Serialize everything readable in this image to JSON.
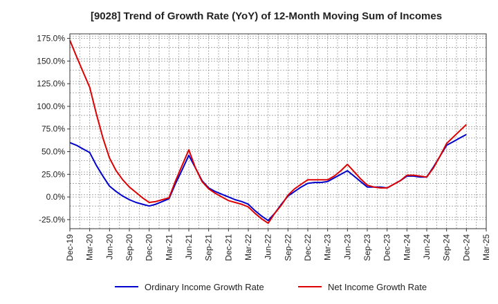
{
  "chart_data": {
    "type": "line",
    "title": "[9028]  Trend of Growth Rate (YoY) of 12-Month Moving Sum of Incomes",
    "xlabel": "",
    "ylabel": "",
    "x_ticks": [
      "Dec-19",
      "Mar-20",
      "Jun-20",
      "Sep-20",
      "Dec-20",
      "Mar-21",
      "Jun-21",
      "Sep-21",
      "Dec-21",
      "Mar-22",
      "Jun-22",
      "Sep-22",
      "Dec-22",
      "Mar-23",
      "Jun-23",
      "Sep-23",
      "Dec-23",
      "Mar-24",
      "Jun-24",
      "Sep-24",
      "Dec-24",
      "Mar-25"
    ],
    "y_ticks": [
      "175.0%",
      "150.0%",
      "125.0%",
      "100.0%",
      "75.0%",
      "50.0%",
      "25.0%",
      "0.0%",
      "-25.0%"
    ],
    "y_tick_values": [
      175,
      150,
      125,
      100,
      75,
      50,
      25,
      0,
      -25
    ],
    "ylim": [
      -35,
      180
    ],
    "grid": true,
    "legend_position": "bottom",
    "x": [
      "Dec-19",
      "Jan-20",
      "Feb-20",
      "Mar-20",
      "Apr-20",
      "May-20",
      "Jun-20",
      "Jul-20",
      "Aug-20",
      "Sep-20",
      "Oct-20",
      "Nov-20",
      "Dec-20",
      "Jan-21",
      "Feb-21",
      "Mar-21",
      "Apr-21",
      "May-21",
      "Jun-21",
      "Jul-21",
      "Aug-21",
      "Sep-21",
      "Oct-21",
      "Nov-21",
      "Dec-21",
      "Jan-22",
      "Feb-22",
      "Mar-22",
      "Apr-22",
      "May-22",
      "Jun-22",
      "Jul-22",
      "Aug-22",
      "Sep-22",
      "Oct-22",
      "Nov-22",
      "Dec-22",
      "Jan-23",
      "Feb-23",
      "Mar-23",
      "Apr-23",
      "May-23",
      "Jun-23",
      "Jul-23",
      "Aug-23",
      "Sep-23",
      "Oct-23",
      "Nov-23",
      "Dec-23",
      "Jan-24",
      "Feb-24",
      "Mar-24",
      "Apr-24",
      "May-24",
      "Jun-24",
      "Jul-24",
      "Aug-24",
      "Sep-24",
      "Oct-24",
      "Nov-24",
      "Dec-24"
    ],
    "series": [
      {
        "name": "Ordinary Income Growth Rate",
        "color": "#0000cc",
        "values": [
          60,
          57,
          53,
          49,
          35,
          23,
          12,
          6,
          1,
          -3,
          -6,
          -8,
          -10,
          -8,
          -5,
          -2,
          15,
          30,
          46,
          32,
          18,
          10,
          6,
          3,
          0,
          -3,
          -5,
          -8,
          -15,
          -21,
          -26,
          -18,
          -8,
          1,
          6,
          11,
          15,
          16,
          16,
          17,
          21,
          25,
          29,
          23,
          17,
          11,
          11,
          11,
          10,
          14,
          18,
          23,
          23,
          22,
          22,
          33,
          45,
          57,
          61,
          65,
          69
        ]
      },
      {
        "name": "Net Income Growth Rate",
        "color": "#dd0000",
        "values": [
          173,
          155,
          138,
          121,
          92,
          65,
          43,
          29,
          19,
          11,
          5,
          -1,
          -6,
          -5,
          -3,
          -1,
          18,
          35,
          52,
          32,
          17,
          9,
          4,
          0,
          -4,
          -6,
          -8,
          -11,
          -18,
          -24,
          -29,
          -18,
          -9,
          2,
          9,
          14,
          19,
          19,
          19,
          19,
          23,
          29,
          36,
          28,
          20,
          13,
          11,
          10,
          10,
          14,
          18,
          24,
          24,
          23,
          22,
          32,
          45,
          59,
          66,
          73,
          80
        ]
      }
    ]
  }
}
